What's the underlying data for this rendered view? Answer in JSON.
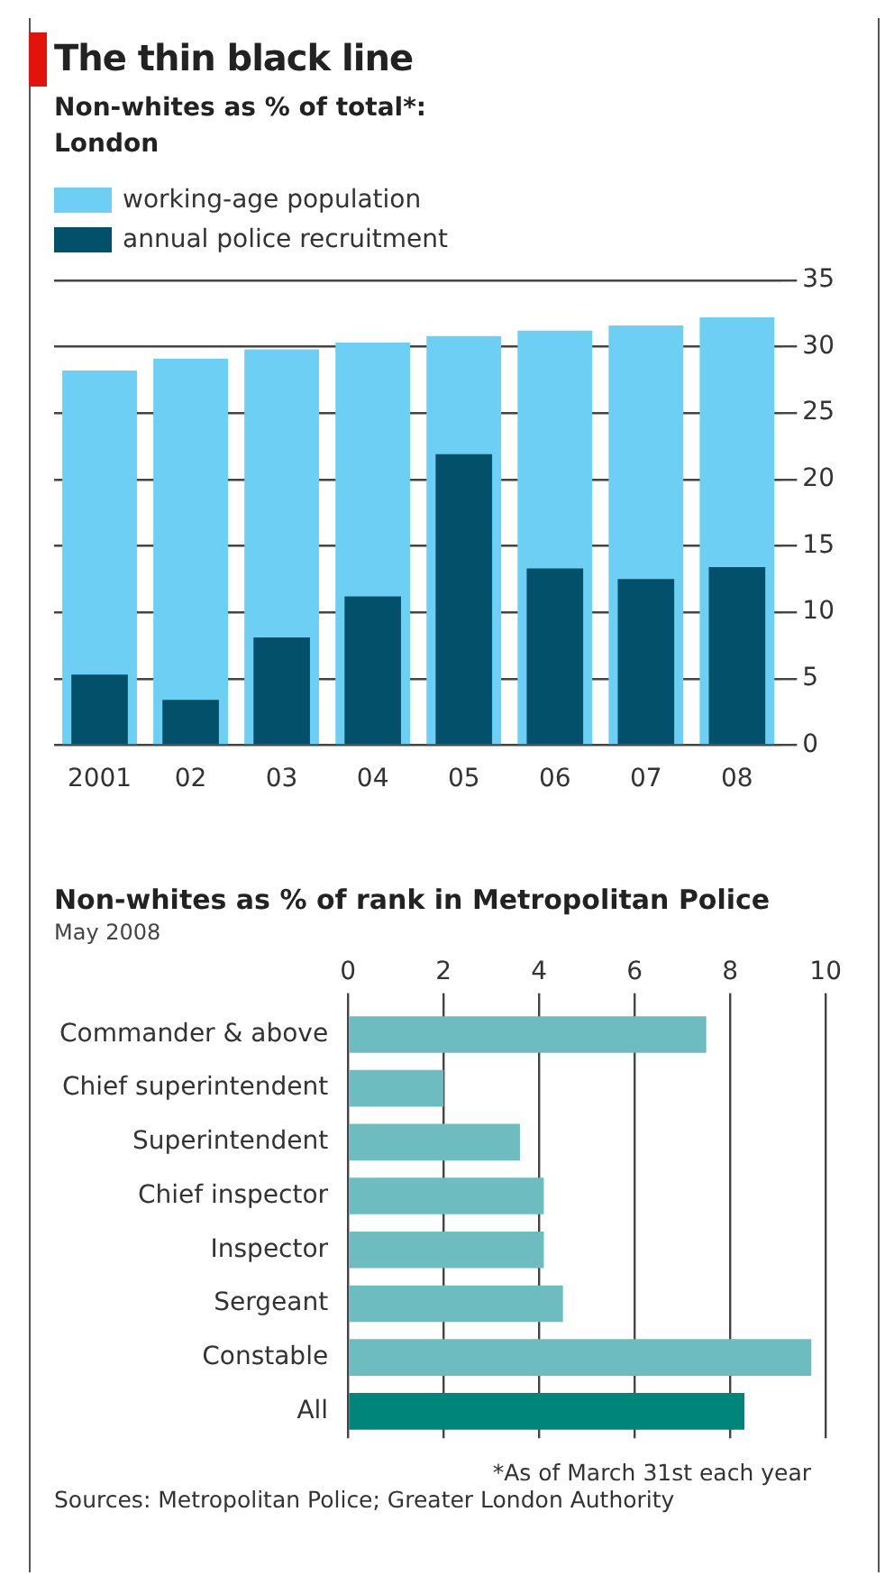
{
  "chart_data": [
    {
      "type": "bar",
      "title": "The thin black line",
      "subtitle": "Non-whites as % of total*:\nLondon",
      "categories": [
        "2001",
        "02",
        "03",
        "04",
        "05",
        "06",
        "07",
        "08"
      ],
      "series": [
        {
          "name": "working-age population",
          "color": "#6ccff3",
          "values": [
            28.2,
            29.1,
            29.8,
            30.3,
            30.8,
            31.2,
            31.6,
            32.2
          ]
        },
        {
          "name": "annual police recruitment",
          "color": "#03506b",
          "values": [
            5.3,
            3.4,
            8.1,
            11.2,
            21.9,
            13.3,
            12.5,
            13.4
          ]
        }
      ],
      "ylim": [
        0,
        35
      ],
      "yticks": [
        0,
        5,
        10,
        15,
        20,
        25,
        30,
        35
      ],
      "grid": "y",
      "legend": "top left"
    },
    {
      "type": "bar",
      "orientation": "horizontal",
      "title": "Non-whites as % of rank in Metropolitan Police",
      "subtitle": "May 2008",
      "categories": [
        "Commander & above",
        "Chief superintendent",
        "Superintendent",
        "Chief inspector",
        "Inspector",
        "Sergeant",
        "Constable",
        "All"
      ],
      "values": [
        7.5,
        2.0,
        3.6,
        4.1,
        4.1,
        4.5,
        9.7,
        8.3
      ],
      "colors": [
        "#6dbcc0",
        "#6dbcc0",
        "#6dbcc0",
        "#6dbcc0",
        "#6dbcc0",
        "#6dbcc0",
        "#6dbcc0",
        "#00857a"
      ],
      "xlim": [
        0,
        10
      ],
      "xticks": [
        0,
        2,
        4,
        6,
        8,
        10
      ],
      "grid": "x",
      "annotations": [
        "*As of March 31st each year",
        "Sources: Metropolitan Police; Greater London Authority"
      ]
    }
  ]
}
